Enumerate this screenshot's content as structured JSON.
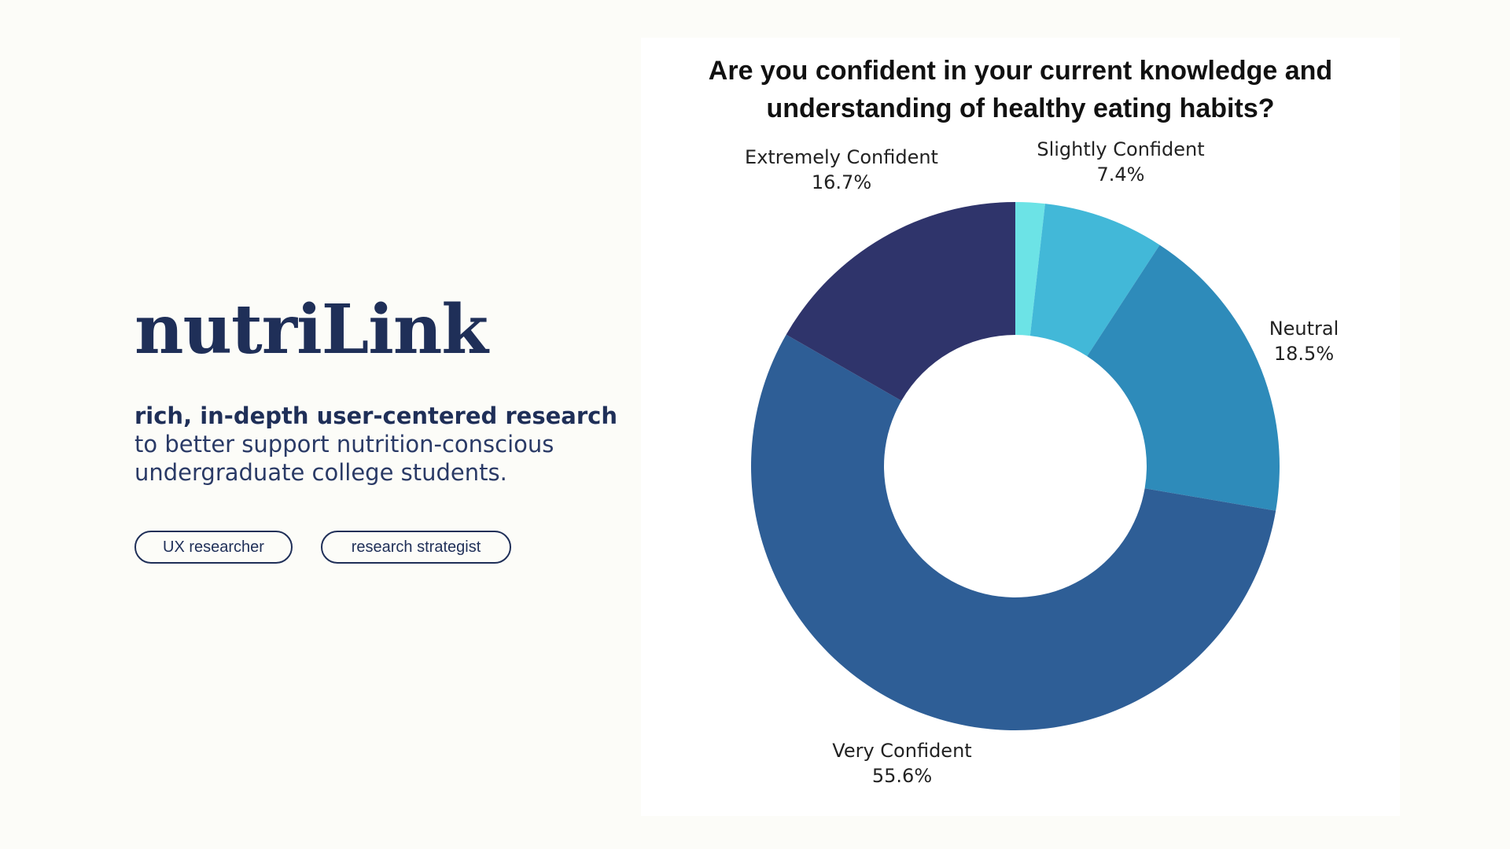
{
  "brand": {
    "name": "nutriLink",
    "tagline_strong": "rich, in-depth user-centered research",
    "tagline_rest": " to better support nutrition-conscious undergraduate college students."
  },
  "roles": [
    "UX researcher",
    "research strategist"
  ],
  "colors": {
    "brand": "#1f2f58",
    "background": "#fcfcf8",
    "slices": [
      "#6ce3e6",
      "#42b8d8",
      "#2e8bba",
      "#2e5e96",
      "#2f346b"
    ]
  },
  "chart_data": {
    "type": "pie",
    "title": "Are you confident in your current knowledge and understanding of healthy eating habits?",
    "donut": true,
    "slices": [
      {
        "label": "",
        "value": 1.8,
        "pct_label": ""
      },
      {
        "label": "Slightly Confident",
        "value": 7.4,
        "pct_label": "7.4%"
      },
      {
        "label": "Neutral",
        "value": 18.5,
        "pct_label": "18.5%"
      },
      {
        "label": "Very Confident",
        "value": 55.6,
        "pct_label": "55.6%"
      },
      {
        "label": "Extremely Confident",
        "value": 16.7,
        "pct_label": "16.7%"
      }
    ]
  }
}
